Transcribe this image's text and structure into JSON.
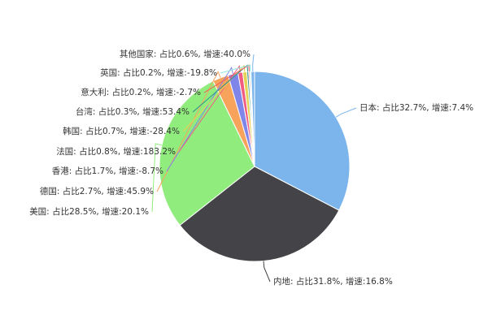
{
  "chart_data": {
    "type": "pie",
    "values": [
      32.7,
      31.8,
      28.5,
      2.7,
      1.7,
      0.8,
      0.7,
      0.3,
      0.2,
      0.2,
      0.6
    ],
    "value_labels": [
      "日本: 占比32.7%, 增速:7.4%",
      "内地: 占比31.8%, 增速:16.8%",
      "美国: 占比28.5%, 增速:20.1%",
      "德国: 占比2.7%, 增速:45.9%",
      "香港: 占比1.7%, 增速:-8.7%",
      "法国: 占比0.8%, 增速:183.2%",
      "韩国: 占比0.7%, 增速:-28.4%",
      "台湾: 占比0.3%, 增速:53.4%",
      "意大利: 占比0.2%, 增速:-2.7%",
      "英国: 占比0.2%, 增速:-19.8%",
      "其他国家: 占比0.6%, 增速:40.0%"
    ],
    "colors": [
      "#7cb5ec",
      "#434348",
      "#90ed7d",
      "#f7a35c",
      "#8085e9",
      "#f15c80",
      "#e4d354",
      "#2b908f",
      "#f45b5b",
      "#91e8e1",
      "#7cb5ec"
    ]
  }
}
